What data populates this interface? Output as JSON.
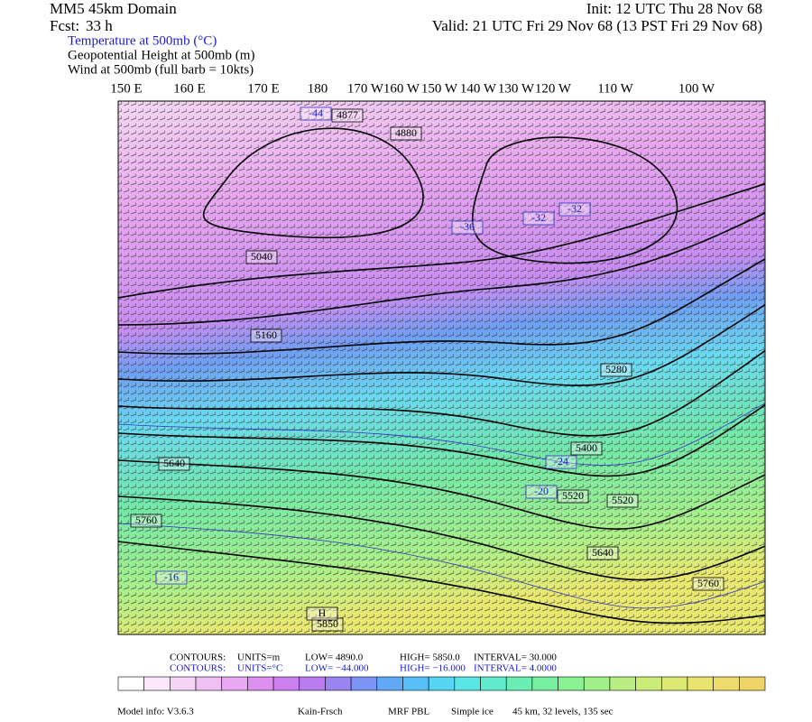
{
  "header": {
    "domain": "MM5 45km Domain",
    "forecast_label": "Fcst:",
    "forecast": "33 h",
    "init": "Init: 12 UTC Thu 28 Nov 68",
    "valid": "Valid: 21 UTC Fri 29 Nov 68 (13 PST Fri 29 Nov 68)"
  },
  "fields": [
    "Temperature at 500mb (°C)",
    "Geopotential Height at 500mb (m)",
    "Wind at 500mb (full barb = 10kts)"
  ],
  "longitudes": [
    "150 E",
    "160 E",
    "170 E",
    "180",
    "170 W",
    "160 W",
    "150 W",
    "140 W",
    "130 W",
    "120 W",
    "110 W",
    "100 W"
  ],
  "map_labels": [
    "4877",
    "4880",
    "-44",
    "5040",
    "5160",
    "-36",
    "-32",
    "-32",
    "5280",
    "5400",
    "5520",
    "5520",
    "5640",
    "5640",
    "5760",
    "5760",
    "5850",
    "-16",
    "-24",
    "-20",
    "H"
  ],
  "contour_info": [
    {
      "label": "CONTOURS:",
      "units": "UNITS=m",
      "low": "LOW=  4890.0",
      "high": "HIGH=  5850.0",
      "interval": "INTERVAL=   30.000"
    },
    {
      "label": "CONTOURS:",
      "units": "UNITS=°C",
      "low": "LOW= −44.000",
      "high": "HIGH=  −16.000",
      "interval": "INTERVAL=   4.0000"
    }
  ],
  "footer": {
    "model": "Model info: V3.6.3",
    "physics": "Kain-Frsch",
    "pbl": "MRF PBL",
    "microphysics": "Simple ice",
    "grid": "45 km, 32 levels, 135 sec"
  }
}
